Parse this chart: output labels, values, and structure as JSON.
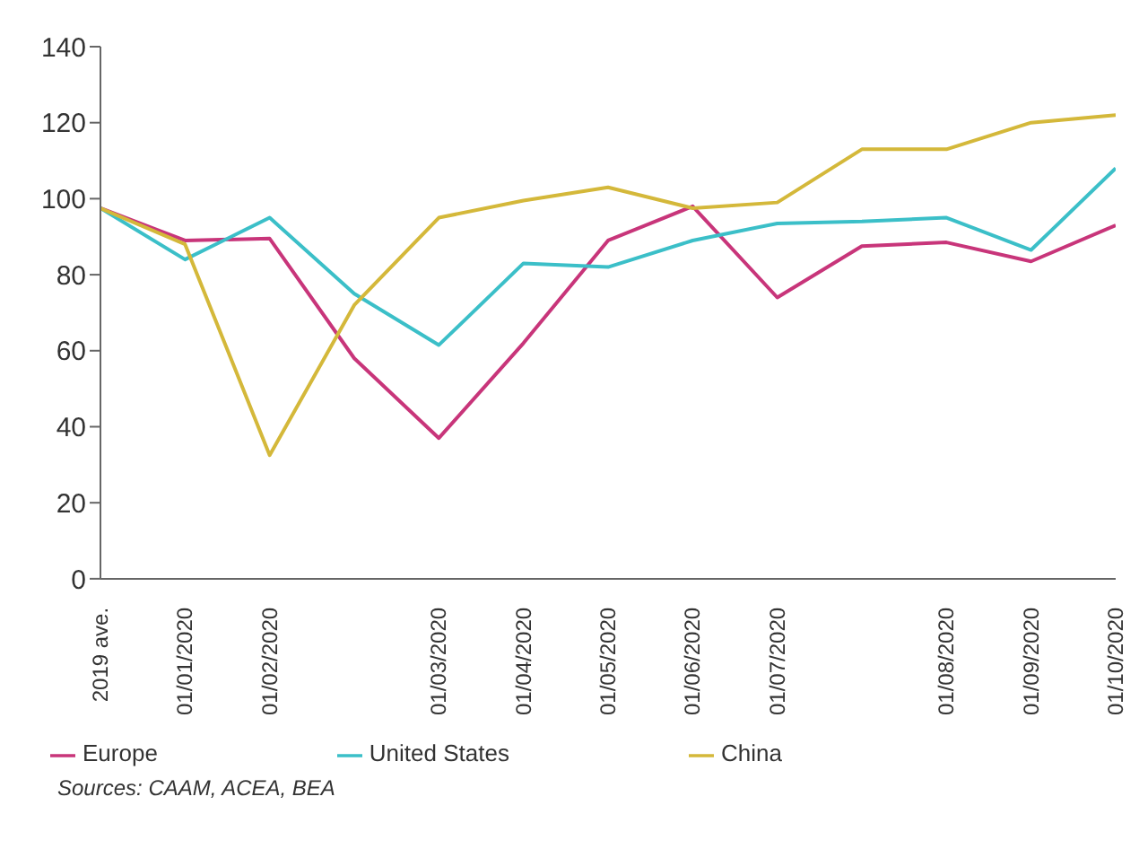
{
  "chart_data": {
    "type": "line",
    "categories": [
      "2019 ave.",
      "01/01/2020",
      "01/02/2020",
      null,
      "01/03/2020",
      "01/04/2020",
      "01/05/2020",
      "01/06/2020",
      "01/07/2020",
      null,
      "01/08/2020",
      "01/09/2020",
      "01/10/2020"
    ],
    "ylim": [
      0,
      140
    ],
    "yticks": [
      0,
      20,
      40,
      60,
      80,
      100,
      120,
      140
    ],
    "series": [
      {
        "name": "Europe",
        "color": "#c8357a",
        "values": [
          97.5,
          89,
          89.5,
          58,
          37,
          62,
          89,
          98,
          74,
          87.5,
          88.5,
          83.5,
          93
        ]
      },
      {
        "name": "United States",
        "color": "#3bbfc8",
        "values": [
          97.5,
          84,
          95,
          75,
          61.5,
          83,
          82,
          89,
          93.5,
          94,
          95,
          86.5,
          108
        ]
      },
      {
        "name": "China",
        "color": "#d4b83a",
        "values": [
          97.5,
          88,
          32.5,
          72,
          95,
          99.5,
          103,
          97.5,
          99,
          113,
          113,
          120,
          122
        ]
      }
    ],
    "grid": false,
    "legend": "bottom",
    "marker": "none",
    "line_style": "solid",
    "annotations": [
      "Sources: CAAM, ACEA, BEA"
    ]
  }
}
